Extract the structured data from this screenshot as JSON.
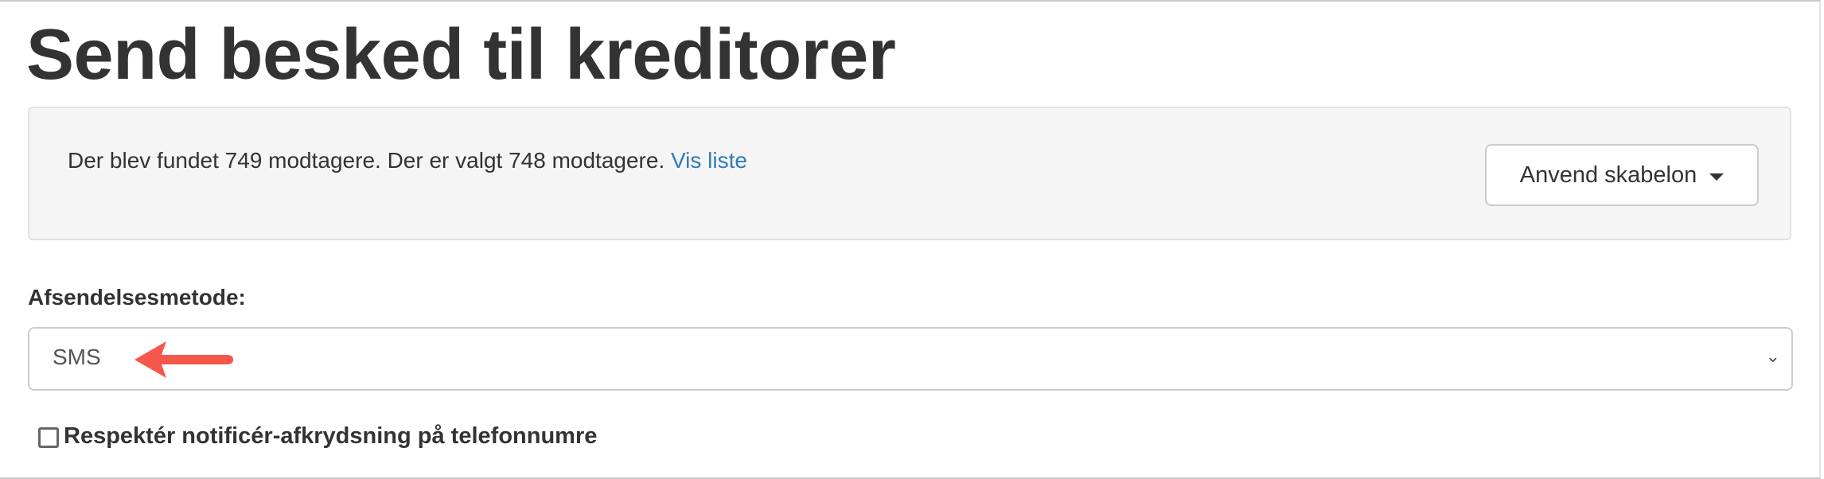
{
  "page": {
    "title": "Send besked til kreditorer"
  },
  "recipients": {
    "text": "Der blev fundet 749 modtagere. Der er valgt 748 modtagere.",
    "link": "Vis liste"
  },
  "template_button": {
    "label": "Anvend skabelon",
    "icon": "caret-down-icon"
  },
  "send_method": {
    "label": "Afsendelsesmetode:",
    "selected": "SMS",
    "annotation_arrow_color": "#f5574a"
  },
  "notify_checkbox": {
    "label": "Respektér notificér-afkrydsning på telefonnumre",
    "checked": false
  },
  "colors": {
    "link": "#337ab7",
    "well_bg": "#f5f5f5",
    "text": "#333333"
  }
}
